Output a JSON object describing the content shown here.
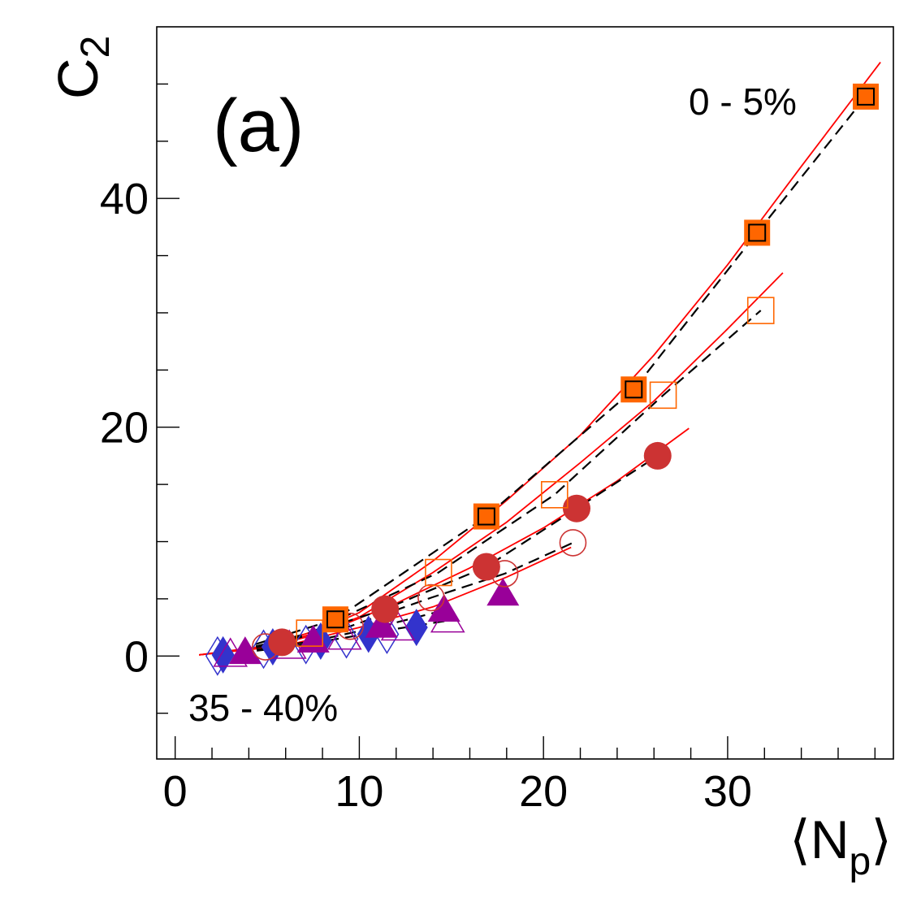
{
  "chart_data": {
    "type": "scatter",
    "panel_label": "(a)",
    "xlabel_base": "⟨N",
    "xlabel_sub": "p",
    "xlabel_close": "⟩",
    "ylabel_base": "C",
    "ylabel_sub": "2",
    "xlim": [
      -1,
      39
    ],
    "ylim": [
      -9,
      55
    ],
    "x_ticks": [
      0,
      10,
      20,
      30
    ],
    "y_ticks": [
      0,
      20,
      40
    ],
    "annotations": {
      "top_right": "0 - 5%",
      "bottom_left": "35 - 40%"
    },
    "colors": {
      "orange": "#ff6600",
      "red": "#cc3333",
      "purple": "#990099",
      "blue": "#3333cc",
      "fit": "#ff0000",
      "dashed": "#000000"
    },
    "series": [
      {
        "marker": "square-filled-outlined",
        "color": "#ff6600",
        "points": [
          [
            8.7,
            3.2
          ],
          [
            16.9,
            12.2
          ],
          [
            24.9,
            23.3
          ],
          [
            31.6,
            37.0
          ],
          [
            37.5,
            48.9
          ]
        ]
      },
      {
        "marker": "square-open",
        "color": "#ff6600",
        "points": [
          [
            7.3,
            2.0
          ],
          [
            14.3,
            7.3
          ],
          [
            20.6,
            14.1
          ],
          [
            26.5,
            22.8
          ],
          [
            31.8,
            30.2
          ]
        ]
      },
      {
        "marker": "circle-filled",
        "color": "#cc3333",
        "points": [
          [
            5.8,
            1.2
          ],
          [
            11.4,
            4.1
          ],
          [
            16.9,
            7.8
          ],
          [
            21.8,
            12.9
          ],
          [
            26.2,
            17.5
          ]
        ]
      },
      {
        "marker": "circle-open",
        "color": "#cc3333",
        "points": [
          [
            4.9,
            0.8
          ],
          [
            9.5,
            2.6
          ],
          [
            13.9,
            5.1
          ],
          [
            17.9,
            7.2
          ],
          [
            21.6,
            9.9
          ]
        ]
      },
      {
        "marker": "triangle-filled",
        "color": "#990099",
        "points": [
          [
            3.8,
            0.3
          ],
          [
            7.5,
            1.3
          ],
          [
            11.2,
            2.6
          ],
          [
            14.6,
            4.0
          ],
          [
            17.8,
            5.4
          ]
        ]
      },
      {
        "marker": "triangle-open",
        "color": "#990099",
        "points": [
          [
            3.0,
            0.1
          ],
          [
            6.2,
            0.8
          ],
          [
            9.2,
            1.6
          ],
          [
            12.1,
            2.4
          ],
          [
            14.8,
            3.1
          ]
        ]
      },
      {
        "marker": "diamond-filled",
        "color": "#3333cc",
        "points": [
          [
            2.6,
            0.1
          ],
          [
            5.3,
            0.8
          ],
          [
            7.9,
            1.3
          ],
          [
            10.5,
            1.9
          ],
          [
            13.1,
            2.5
          ]
        ]
      },
      {
        "marker": "diamond-open",
        "color": "#3333cc",
        "points": [
          [
            2.3,
            0.0
          ],
          [
            4.8,
            0.6
          ],
          [
            7.1,
            1.0
          ],
          [
            9.3,
            1.5
          ],
          [
            11.5,
            1.9
          ]
        ]
      }
    ],
    "fit_lines": [
      {
        "style": "solid",
        "color": "#ff0000",
        "points": [
          [
            1.3,
            0.1
          ],
          [
            5,
            0.9
          ],
          [
            8,
            2.4
          ],
          [
            10,
            3.8
          ],
          [
            14,
            8.3
          ],
          [
            18,
            13.6
          ],
          [
            22,
            19.3
          ],
          [
            26,
            26.3
          ],
          [
            30,
            34.2
          ],
          [
            34,
            42.8
          ],
          [
            38.3,
            51.9
          ]
        ]
      },
      {
        "style": "solid",
        "color": "#ff0000",
        "points": [
          [
            1.3,
            0.1
          ],
          [
            5,
            0.8
          ],
          [
            8,
            2.2
          ],
          [
            10,
            3.4
          ],
          [
            14,
            7.3
          ],
          [
            18,
            11.7
          ],
          [
            22,
            16.9
          ],
          [
            26,
            22.3
          ],
          [
            30,
            28.6
          ],
          [
            33.0,
            33.5
          ]
        ]
      },
      {
        "style": "solid",
        "color": "#ff0000",
        "points": [
          [
            1.3,
            0.1
          ],
          [
            5,
            0.8
          ],
          [
            8,
            2.0
          ],
          [
            12,
            4.6
          ],
          [
            16,
            7.7
          ],
          [
            20,
            11.2
          ],
          [
            24,
            15.3
          ],
          [
            27.9,
            19.9
          ]
        ]
      },
      {
        "style": "solid",
        "color": "#ff0000",
        "points": [
          [
            1.3,
            0.1
          ],
          [
            6,
            0.9
          ],
          [
            10,
            2.5
          ],
          [
            14,
            4.3
          ],
          [
            18,
            6.9
          ],
          [
            21.5,
            9.5
          ]
        ]
      },
      {
        "style": "dashed",
        "color": "#000000",
        "points": [
          [
            2.5,
            0.1
          ],
          [
            8.7,
            3.2
          ],
          [
            16.9,
            12.2
          ],
          [
            24.9,
            23.3
          ],
          [
            31.6,
            37.0
          ],
          [
            37.5,
            48.9
          ]
        ]
      },
      {
        "style": "dashed",
        "color": "#000000",
        "points": [
          [
            2.5,
            0.1
          ],
          [
            7.3,
            2.0
          ],
          [
            14.3,
            7.3
          ],
          [
            20.6,
            14.1
          ],
          [
            26.5,
            22.8
          ],
          [
            31.8,
            30.2
          ]
        ]
      },
      {
        "style": "dashed",
        "color": "#000000",
        "points": [
          [
            2.5,
            0.1
          ],
          [
            5.8,
            1.2
          ],
          [
            11.4,
            4.1
          ],
          [
            16.9,
            7.8
          ],
          [
            21.8,
            12.9
          ],
          [
            26.2,
            17.5
          ]
        ]
      },
      {
        "style": "dashed",
        "color": "#000000",
        "points": [
          [
            2.5,
            0.1
          ],
          [
            9.5,
            2.6
          ],
          [
            13.9,
            5.1
          ],
          [
            17.9,
            7.2
          ],
          [
            21.6,
            9.9
          ]
        ]
      },
      {
        "style": "dashed",
        "color": "#000000",
        "points": [
          [
            2.5,
            0.1
          ],
          [
            7.5,
            1.3
          ],
          [
            11.2,
            2.6
          ],
          [
            14.6,
            4.0
          ]
        ]
      },
      {
        "style": "dashed",
        "color": "#000000",
        "points": [
          [
            2.5,
            0.1
          ],
          [
            6.2,
            0.8
          ],
          [
            9.2,
            1.6
          ],
          [
            12.1,
            2.4
          ],
          [
            14.8,
            3.1
          ]
        ]
      }
    ]
  }
}
